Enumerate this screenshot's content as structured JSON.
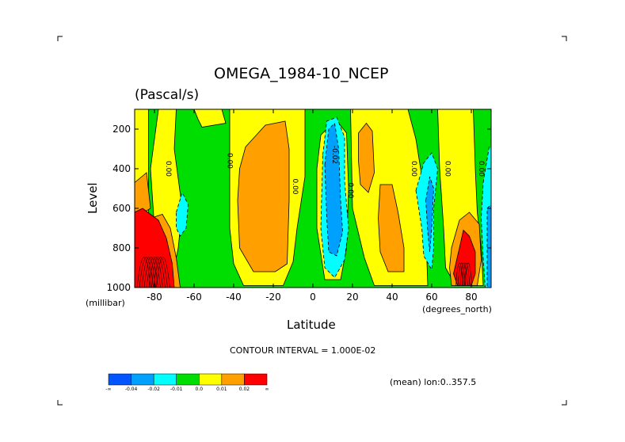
{
  "chart_data": {
    "type": "heatmap",
    "title": "OMEGA_1984-10_NCEP",
    "units": "(Pascal/s)",
    "xlabel": "Latitude",
    "ylabel": "Level",
    "x_unit_label": "(degrees_north)",
    "y_unit_label": "(millibar)",
    "xlim": [
      -90,
      90
    ],
    "ylim": [
      1000,
      100
    ],
    "x_ticks": [
      -80,
      -60,
      -40,
      -20,
      0,
      20,
      40,
      60,
      80
    ],
    "x_tick_labels": [
      "-80",
      "-60",
      "-40",
      "-20",
      "0",
      "20",
      "40",
      "60",
      "80"
    ],
    "y_ticks": [
      200,
      400,
      600,
      800,
      1000
    ],
    "y_tick_labels": [
      "200",
      "400",
      "600",
      "800",
      "1000"
    ],
    "contour_interval_text": "CONTOUR INTERVAL = 1.000E-02",
    "mean_text": "(mean) lon:0..357.5",
    "colorbar": {
      "colors": [
        "#0055ff",
        "#00a0ff",
        "#00ffff",
        "#00dd00",
        "#ffff00",
        "#ffa000",
        "#ff0000"
      ],
      "labels": [
        "-∞",
        "-0.04",
        "-0.02",
        "-0.01",
        "0.0",
        "0.01",
        "0.02",
        "∞"
      ]
    },
    "contour_labels": [
      {
        "text": "0.00",
        "lat": -74,
        "lev": 400
      },
      {
        "text": "0.00",
        "lat": -43,
        "lev": 360
      },
      {
        "text": "0.00",
        "lat": -10,
        "lev": 490
      },
      {
        "text": "-0.02",
        "lat": 10,
        "lev": 330
      },
      {
        "text": "0.00",
        "lat": 18,
        "lev": 510
      },
      {
        "text": "0.00",
        "lat": 50,
        "lev": 400
      },
      {
        "text": "0.00",
        "lat": 67,
        "lev": 400
      },
      {
        "text": "0.00",
        "lat": 84,
        "lev": 400
      }
    ],
    "regions": [
      {
        "level": "0.0",
        "points": [
          [
            -90,
            100
          ],
          [
            -83,
            100
          ],
          [
            -83,
            1000
          ],
          [
            -90,
            1000
          ]
        ]
      },
      {
        "level": "0.0",
        "points": [
          [
            -78,
            100
          ],
          [
            -69,
            100
          ],
          [
            -70,
            300
          ],
          [
            -68,
            450
          ],
          [
            -66,
            600
          ],
          [
            -68,
            800
          ],
          [
            -72,
            1000
          ],
          [
            -78,
            1000
          ],
          [
            -80,
            700
          ],
          [
            -82,
            400
          ]
        ]
      },
      {
        "level": "0.0",
        "points": [
          [
            -60,
            100
          ],
          [
            -46,
            100
          ],
          [
            -44,
            170
          ],
          [
            -56,
            190
          ],
          [
            -58,
            150
          ]
        ]
      },
      {
        "level": "0.0",
        "points": [
          [
            -42,
            100
          ],
          [
            -4,
            100
          ],
          [
            -4,
            440
          ],
          [
            -8,
            700
          ],
          [
            -10,
            870
          ],
          [
            -15,
            990
          ],
          [
            -35,
            990
          ],
          [
            -40,
            880
          ],
          [
            -42,
            700
          ],
          [
            -42,
            400
          ]
        ]
      },
      {
        "level": "0.0",
        "points": [
          [
            4,
            230
          ],
          [
            9,
            180
          ],
          [
            13,
            170
          ],
          [
            17,
            220
          ],
          [
            18,
            500
          ],
          [
            17,
            800
          ],
          [
            14,
            960
          ],
          [
            6,
            960
          ],
          [
            2,
            700
          ],
          [
            2,
            400
          ]
        ]
      },
      {
        "level": "0.0",
        "points": [
          [
            19,
            100
          ],
          [
            48,
            100
          ],
          [
            52,
            250
          ],
          [
            56,
            500
          ],
          [
            57,
            700
          ],
          [
            58,
            990
          ],
          [
            42,
            990
          ],
          [
            31,
            990
          ],
          [
            26,
            850
          ],
          [
            20,
            600
          ]
        ]
      },
      {
        "level": "0.0",
        "points": [
          [
            63,
            100
          ],
          [
            81,
            100
          ],
          [
            82,
            400
          ],
          [
            83,
            620
          ],
          [
            85,
            800
          ],
          [
            86,
            990
          ],
          [
            72,
            990
          ],
          [
            67,
            900
          ],
          [
            66,
            700
          ],
          [
            64,
            400
          ]
        ]
      },
      {
        "level": "0.01",
        "points": [
          [
            -90,
            470
          ],
          [
            -84,
            420
          ],
          [
            -82,
            600
          ],
          [
            -90,
            650
          ]
        ]
      },
      {
        "level": "0.01",
        "points": [
          [
            -82,
            650
          ],
          [
            -76,
            630
          ],
          [
            -72,
            700
          ],
          [
            -69,
            850
          ],
          [
            -67,
            1000
          ],
          [
            -82,
            1000
          ]
        ]
      },
      {
        "level": "0.01",
        "points": [
          [
            -34,
            290
          ],
          [
            -24,
            180
          ],
          [
            -14,
            160
          ],
          [
            -12,
            300
          ],
          [
            -12,
            560
          ],
          [
            -13,
            880
          ],
          [
            -19,
            920
          ],
          [
            -30,
            920
          ],
          [
            -37,
            800
          ],
          [
            -38,
            560
          ],
          [
            -37,
            400
          ]
        ]
      },
      {
        "level": "0.01",
        "points": [
          [
            23,
            220
          ],
          [
            27,
            170
          ],
          [
            30,
            210
          ],
          [
            31,
            420
          ],
          [
            28,
            520
          ],
          [
            24,
            480
          ],
          [
            23,
            360
          ]
        ]
      },
      {
        "level": "0.01",
        "points": [
          [
            34,
            480
          ],
          [
            40,
            480
          ],
          [
            43,
            620
          ],
          [
            46,
            800
          ],
          [
            46,
            920
          ],
          [
            38,
            920
          ],
          [
            34,
            820
          ],
          [
            33,
            650
          ]
        ]
      },
      {
        "level": "0.01",
        "points": [
          [
            70,
            800
          ],
          [
            74,
            660
          ],
          [
            79,
            620
          ],
          [
            84,
            680
          ],
          [
            85,
            860
          ],
          [
            83,
            990
          ],
          [
            70,
            990
          ],
          [
            69,
            900
          ]
        ]
      },
      {
        "level": "0.02",
        "points": [
          [
            -90,
            620
          ],
          [
            -86,
            600
          ],
          [
            -78,
            660
          ],
          [
            -74,
            750
          ],
          [
            -71,
            880
          ],
          [
            -70,
            1000
          ],
          [
            -90,
            1000
          ]
        ]
      },
      {
        "level": "0.02",
        "points": [
          [
            71,
            930
          ],
          [
            74,
            800
          ],
          [
            76,
            710
          ],
          [
            79,
            740
          ],
          [
            82,
            820
          ],
          [
            82,
            930
          ],
          [
            80,
            990
          ],
          [
            73,
            990
          ]
        ]
      },
      {
        "level": "-0.01",
        "points": [
          [
            -69,
            620
          ],
          [
            -66,
            520
          ],
          [
            -63,
            580
          ],
          [
            -64,
            700
          ],
          [
            -67,
            740
          ],
          [
            -69,
            700
          ]
        ]
      },
      {
        "level": "-0.01",
        "points": [
          [
            5,
            330
          ],
          [
            7,
            160
          ],
          [
            12,
            140
          ],
          [
            16,
            240
          ],
          [
            16,
            460
          ],
          [
            18,
            700
          ],
          [
            16,
            860
          ],
          [
            11,
            950
          ],
          [
            6,
            900
          ],
          [
            4,
            700
          ]
        ]
      },
      {
        "level": "-0.01",
        "points": [
          [
            52,
            510
          ],
          [
            56,
            370
          ],
          [
            60,
            320
          ],
          [
            63,
            400
          ],
          [
            61,
            600
          ],
          [
            61,
            800
          ],
          [
            60,
            910
          ],
          [
            56,
            840
          ],
          [
            55,
            700
          ]
        ]
      },
      {
        "level": "-0.01",
        "points": [
          [
            86,
            470
          ],
          [
            89,
            290
          ],
          [
            90,
            300
          ],
          [
            90,
            1000
          ],
          [
            87,
            1000
          ],
          [
            86,
            850
          ],
          [
            85,
            650
          ]
        ]
      },
      {
        "level": "-0.02",
        "points": [
          [
            6,
            380
          ],
          [
            8,
            200
          ],
          [
            11,
            170
          ],
          [
            13,
            300
          ],
          [
            14,
            560
          ],
          [
            15,
            720
          ],
          [
            12,
            840
          ],
          [
            8,
            820
          ],
          [
            7,
            650
          ]
        ]
      },
      {
        "level": "-0.02",
        "points": [
          [
            57,
            560
          ],
          [
            59,
            440
          ],
          [
            61,
            500
          ],
          [
            60,
            700
          ],
          [
            59,
            820
          ],
          [
            58,
            720
          ]
        ]
      },
      {
        "level": "-0.02",
        "points": [
          [
            88,
            600
          ],
          [
            90,
            580
          ],
          [
            90,
            1000
          ],
          [
            88,
            1000
          ]
        ]
      }
    ]
  }
}
